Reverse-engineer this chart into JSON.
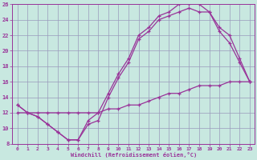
{
  "xlabel": "Windchill (Refroidissement éolien,°C)",
  "ylabel": "",
  "bg_color": "#c8e8e0",
  "grid_color": "#9999bb",
  "line_color": "#993399",
  "xlim": [
    -0.5,
    23.5
  ],
  "ylim": [
    8,
    26
  ],
  "xticks": [
    0,
    1,
    2,
    3,
    4,
    5,
    6,
    7,
    8,
    9,
    10,
    11,
    12,
    13,
    14,
    15,
    16,
    17,
    18,
    19,
    20,
    21,
    22,
    23
  ],
  "yticks": [
    8,
    10,
    12,
    14,
    16,
    18,
    20,
    22,
    24,
    26
  ],
  "line1_x": [
    0,
    1,
    2,
    3,
    4,
    5,
    6,
    7,
    8,
    9,
    10,
    11,
    12,
    13,
    14,
    15,
    16,
    17,
    18,
    19,
    20,
    21,
    22,
    23
  ],
  "line1_y": [
    12,
    12,
    12,
    12,
    12,
    12,
    12,
    12,
    12,
    12.5,
    12.5,
    13,
    13,
    13.5,
    14,
    14.5,
    14.5,
    15,
    15.5,
    15.5,
    15.5,
    16,
    16,
    16
  ],
  "line2_x": [
    0,
    1,
    2,
    3,
    4,
    5,
    6,
    7,
    8,
    9,
    10,
    11,
    12,
    13,
    14,
    15,
    16,
    17,
    18,
    19,
    20,
    21,
    22,
    23
  ],
  "line2_y": [
    13,
    12,
    11.5,
    10.5,
    9.5,
    8.5,
    8.5,
    11,
    12,
    14.5,
    17,
    19,
    22,
    23,
    24.5,
    25,
    26,
    26,
    26,
    25,
    23,
    22,
    19,
    16
  ],
  "line3_x": [
    0,
    1,
    2,
    3,
    4,
    5,
    6,
    7,
    8,
    9,
    10,
    11,
    12,
    13,
    14,
    15,
    16,
    17,
    18,
    19,
    20,
    21,
    22,
    23
  ],
  "line3_y": [
    13,
    12,
    11.5,
    10.5,
    9.5,
    8.5,
    8.5,
    10.5,
    11,
    14,
    16.5,
    18.5,
    21.5,
    22.5,
    24,
    24.5,
    25,
    25.5,
    25,
    25,
    22.5,
    21,
    18.5,
    16
  ]
}
